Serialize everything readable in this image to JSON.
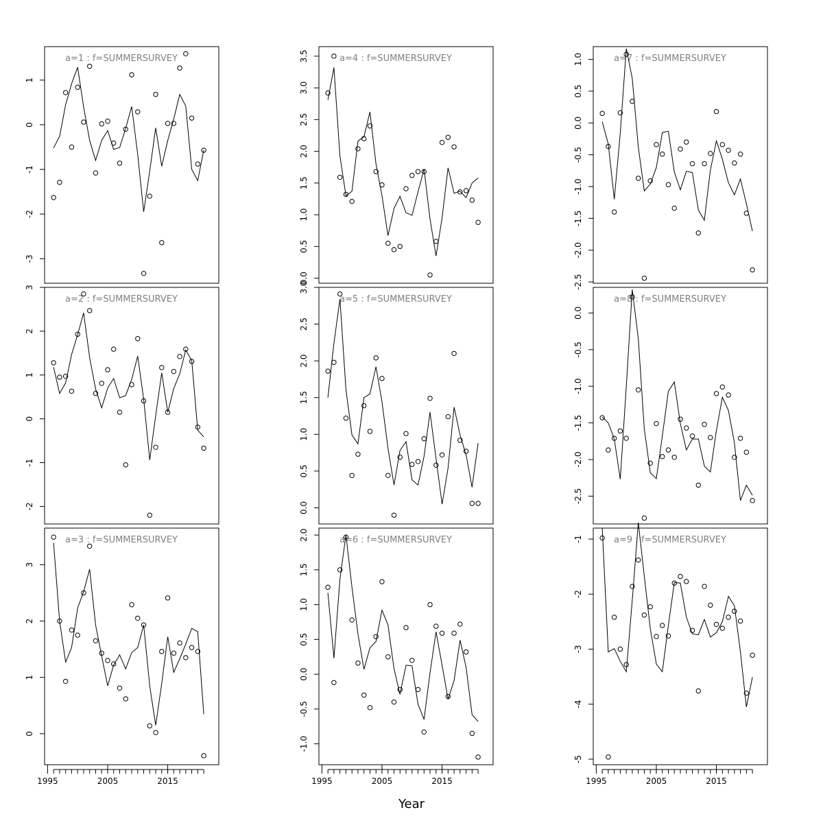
{
  "chart_data": {
    "type": "line",
    "xlabel": "Year",
    "xlim": [
      1994.5,
      2023.5
    ],
    "xticks": [
      1995,
      2005,
      2015
    ],
    "panels": [
      {
        "title": "a=1  :  f=SUMMERSURVEY",
        "ylim": [
          -3.55,
          1.75
        ],
        "yticks": [
          -3,
          -2,
          -1,
          0,
          1
        ],
        "x": [
          1996,
          1997,
          1998,
          1999,
          2000,
          2001,
          2002,
          2003,
          2004,
          2005,
          2006,
          2007,
          2008,
          2009,
          2010,
          2011,
          2012,
          2013,
          2014,
          2015,
          2016,
          2017,
          2018,
          2019,
          2020,
          2021
        ],
        "observed": [
          -1.63,
          -1.29,
          0.72,
          -0.5,
          0.84,
          0.06,
          1.31,
          -1.08,
          0.02,
          0.08,
          -0.41,
          -0.86,
          -0.1,
          1.12,
          0.29,
          -3.33,
          -1.6,
          0.68,
          -2.64,
          0.03,
          0.03,
          1.27,
          1.59,
          0.15,
          -0.88,
          -0.57
        ],
        "fitted": [
          -0.52,
          -0.26,
          0.45,
          0.92,
          1.29,
          0.4,
          -0.35,
          -0.8,
          -0.35,
          -0.13,
          -0.55,
          -0.51,
          -0.08,
          0.41,
          -0.67,
          -1.95,
          -1.04,
          -0.07,
          -0.93,
          -0.35,
          0.13,
          0.68,
          0.42,
          -1.0,
          -1.25,
          -0.57
        ]
      },
      {
        "title": "a=2  :  f=SUMMERSURVEY",
        "ylim": [
          -2.4,
          3.0
        ],
        "yticks": [
          -2,
          -1,
          0,
          1,
          2,
          3
        ],
        "x": [
          1996,
          1997,
          1998,
          1999,
          2000,
          2001,
          2002,
          2003,
          2004,
          2005,
          2006,
          2007,
          2008,
          2009,
          2010,
          2011,
          2012,
          2013,
          2014,
          2015,
          2016,
          2017,
          2018,
          2019,
          2020,
          2021
        ],
        "observed": [
          1.28,
          0.95,
          0.97,
          0.63,
          1.93,
          2.85,
          2.47,
          0.58,
          0.81,
          1.12,
          1.59,
          0.15,
          -1.05,
          0.78,
          1.83,
          0.41,
          -2.2,
          -0.65,
          1.17,
          0.15,
          1.08,
          1.42,
          1.59,
          1.31,
          -0.19,
          -0.67
        ],
        "fitted": [
          1.18,
          0.58,
          0.82,
          1.47,
          1.92,
          2.42,
          1.4,
          0.68,
          0.25,
          0.7,
          0.92,
          0.48,
          0.53,
          0.9,
          1.43,
          0.45,
          -0.94,
          0.07,
          1.05,
          0.15,
          0.69,
          1.03,
          1.57,
          1.33,
          -0.26,
          -0.41
        ]
      },
      {
        "title": "a=3  :  f=SUMMERSURVEY",
        "ylim": [
          -0.55,
          3.65
        ],
        "yticks": [
          0,
          1,
          2,
          3
        ],
        "x": [
          1996,
          1997,
          1998,
          1999,
          2000,
          2001,
          2002,
          2003,
          2004,
          2005,
          2006,
          2007,
          2008,
          2009,
          2010,
          2011,
          2012,
          2013,
          2014,
          2015,
          2016,
          2017,
          2018,
          2019,
          2020,
          2021
        ],
        "observed": [
          3.49,
          2.0,
          0.93,
          1.84,
          1.75,
          2.5,
          3.33,
          1.65,
          1.43,
          1.3,
          1.24,
          0.81,
          0.62,
          2.29,
          2.05,
          1.93,
          0.14,
          0.02,
          1.46,
          2.41,
          1.43,
          1.61,
          1.35,
          1.53,
          1.46,
          -0.39
        ],
        "fitted": [
          3.39,
          2.0,
          1.27,
          1.53,
          2.23,
          2.52,
          2.92,
          1.93,
          1.38,
          0.85,
          1.22,
          1.4,
          1.15,
          1.44,
          1.53,
          1.93,
          0.85,
          0.15,
          0.89,
          1.72,
          1.09,
          1.33,
          1.59,
          1.87,
          1.81,
          0.35
        ]
      },
      {
        "title": "a=4  :  f=SUMMERSURVEY",
        "ylim": [
          -0.08,
          3.65
        ],
        "yticks": [
          0.0,
          0.5,
          1.0,
          1.5,
          2.0,
          2.5,
          3.0,
          3.5
        ],
        "x": [
          1996,
          1997,
          1998,
          1999,
          2000,
          2001,
          2002,
          2003,
          2004,
          2005,
          2006,
          2007,
          2008,
          2009,
          2010,
          2011,
          2012,
          2013,
          2014,
          2015,
          2016,
          2017,
          2018,
          2019,
          2020,
          2021
        ],
        "observed": [
          2.92,
          3.5,
          1.59,
          1.32,
          1.21,
          2.04,
          2.2,
          2.4,
          1.68,
          1.47,
          0.55,
          0.45,
          0.5,
          1.41,
          1.62,
          1.68,
          1.68,
          0.05,
          0.58,
          2.14,
          2.22,
          2.07,
          1.36,
          1.38,
          1.23,
          0.88
        ],
        "fitted": [
          2.81,
          3.32,
          1.92,
          1.3,
          1.37,
          2.16,
          2.23,
          2.62,
          1.8,
          1.3,
          0.67,
          1.1,
          1.29,
          1.03,
          0.99,
          1.36,
          1.72,
          0.93,
          0.35,
          0.95,
          1.74,
          1.34,
          1.37,
          1.27,
          1.5,
          1.58
        ]
      },
      {
        "title": "a=5  :  f=SUMMERSURVEY",
        "ylim": [
          -0.22,
          3.0
        ],
        "yticks": [
          0.0,
          0.5,
          1.0,
          1.5,
          2.0,
          2.5,
          3.0
        ],
        "x": [
          1996,
          1997,
          1998,
          1999,
          2000,
          2001,
          2002,
          2003,
          2004,
          2005,
          2006,
          2007,
          2008,
          2009,
          2010,
          2011,
          2012,
          2013,
          2014,
          2015,
          2016,
          2017,
          2018,
          2019,
          2020,
          2021
        ],
        "observed": [
          1.86,
          1.98,
          2.91,
          1.22,
          0.44,
          0.73,
          1.39,
          1.04,
          2.04,
          1.76,
          0.44,
          -0.1,
          0.69,
          1.01,
          0.59,
          0.63,
          0.94,
          1.49,
          0.58,
          0.72,
          1.24,
          2.1,
          0.92,
          0.77,
          0.06,
          0.06
        ],
        "fitted": [
          1.5,
          2.24,
          2.84,
          1.61,
          0.99,
          0.87,
          1.5,
          1.55,
          1.92,
          1.44,
          0.81,
          0.31,
          0.78,
          0.9,
          0.38,
          0.31,
          0.7,
          1.3,
          0.67,
          0.05,
          0.54,
          1.37,
          0.99,
          0.72,
          0.28,
          0.88
        ]
      },
      {
        "title": "a=6  :  f=SUMMERSURVEY",
        "ylim": [
          -1.3,
          2.1
        ],
        "yticks": [
          -1.0,
          -0.5,
          0.0,
          0.5,
          1.0,
          1.5,
          2.0
        ],
        "x": [
          1996,
          1997,
          1998,
          1999,
          2000,
          2001,
          2002,
          2003,
          2004,
          2005,
          2006,
          2007,
          2008,
          2009,
          2010,
          2011,
          2012,
          2013,
          2014,
          2015,
          2016,
          2017,
          2018,
          2019,
          2020,
          2021
        ],
        "observed": [
          1.25,
          -0.12,
          1.5,
          1.97,
          0.78,
          0.16,
          -0.3,
          -0.48,
          0.54,
          1.33,
          0.25,
          -0.4,
          -0.22,
          0.67,
          0.2,
          -0.22,
          -0.83,
          1.0,
          0.69,
          0.59,
          -0.32,
          0.59,
          0.72,
          0.32,
          -0.85,
          -1.19
        ],
        "fitted": [
          1.17,
          0.23,
          1.37,
          2.0,
          1.25,
          0.58,
          0.07,
          0.38,
          0.47,
          0.92,
          0.71,
          0.08,
          -0.29,
          0.13,
          0.12,
          -0.43,
          -0.65,
          0.02,
          0.61,
          0.13,
          -0.36,
          -0.09,
          0.49,
          0.1,
          -0.58,
          -0.68
        ]
      },
      {
        "title": "a=7  :  f=SUMMERSURVEY",
        "ylim": [
          -2.52,
          1.2
        ],
        "yticks": [
          -2.5,
          -2.0,
          -1.5,
          -1.0,
          -0.5,
          0.0,
          0.5,
          1.0
        ],
        "x": [
          1996,
          1997,
          1998,
          1999,
          2000,
          2001,
          2002,
          2003,
          2004,
          2005,
          2006,
          2007,
          2008,
          2009,
          2010,
          2011,
          2012,
          2013,
          2014,
          2015,
          2016,
          2017,
          2018,
          2019,
          2020,
          2021
        ],
        "observed": [
          0.15,
          -0.37,
          -1.4,
          0.16,
          1.08,
          0.34,
          -0.87,
          -2.44,
          -0.91,
          -0.34,
          -0.49,
          -0.97,
          -1.34,
          -0.41,
          -0.3,
          -0.64,
          -1.73,
          -0.64,
          -0.48,
          0.18,
          -0.34,
          -0.43,
          -0.63,
          -0.49,
          -1.42,
          -2.31
        ],
        "fitted": [
          0.02,
          -0.33,
          -1.2,
          -0.16,
          1.17,
          0.7,
          -0.38,
          -1.07,
          -0.96,
          -0.7,
          -0.15,
          -0.13,
          -0.77,
          -1.05,
          -0.76,
          -0.78,
          -1.37,
          -1.53,
          -0.74,
          -0.28,
          -0.57,
          -0.94,
          -1.13,
          -0.88,
          -1.27,
          -1.7
        ]
      },
      {
        "title": "a=8  :  f=SUMMERSURVEY",
        "ylim": [
          -2.88,
          0.35
        ],
        "yticks": [
          -2.5,
          -2.0,
          -1.5,
          -1.0,
          -0.5,
          0.0
        ],
        "x": [
          1996,
          1997,
          1998,
          1999,
          2000,
          2001,
          2002,
          2003,
          2004,
          2005,
          2006,
          2007,
          2008,
          2009,
          2010,
          2011,
          2012,
          2013,
          2014,
          2015,
          2016,
          2017,
          2018,
          2019,
          2020,
          2021
        ],
        "observed": [
          -1.43,
          -1.87,
          -1.71,
          -1.61,
          -1.71,
          0.22,
          -1.05,
          -2.8,
          -2.05,
          -1.51,
          -1.96,
          -1.87,
          -1.97,
          -1.45,
          -1.57,
          -1.68,
          -2.35,
          -1.52,
          -1.7,
          -1.1,
          -1.01,
          -1.12,
          -1.97,
          -1.71,
          -1.9,
          -2.56
        ],
        "fitted": [
          -1.42,
          -1.5,
          -1.72,
          -2.27,
          -1.0,
          0.32,
          -0.35,
          -1.58,
          -2.18,
          -2.26,
          -1.68,
          -1.07,
          -0.94,
          -1.51,
          -1.87,
          -1.72,
          -1.72,
          -2.09,
          -2.17,
          -1.6,
          -1.15,
          -1.33,
          -1.77,
          -2.56,
          -2.35,
          -2.49
        ]
      },
      {
        "title": "a=9  :  f=SUMMERSURVEY",
        "ylim": [
          -5.1,
          -0.8
        ],
        "yticks": [
          -5,
          -4,
          -3,
          -2,
          -1
        ],
        "x": [
          1996,
          1997,
          1998,
          1999,
          2000,
          2001,
          2002,
          2003,
          2004,
          2005,
          2006,
          2007,
          2008,
          2009,
          2010,
          2011,
          2012,
          2013,
          2014,
          2015,
          2016,
          2017,
          2018,
          2019,
          2020,
          2021
        ],
        "observed": [
          -0.98,
          -4.96,
          -2.42,
          -3.0,
          -3.28,
          -1.86,
          -1.38,
          -2.38,
          -2.23,
          -2.77,
          -2.57,
          -2.76,
          -1.8,
          -1.68,
          -1.77,
          -2.66,
          -3.76,
          -1.86,
          -2.2,
          -2.55,
          -2.62,
          -2.42,
          -2.31,
          -2.49,
          -3.8,
          -3.11
        ],
        "fitted": [
          -0.8,
          -3.05,
          -2.99,
          -3.22,
          -3.41,
          -2.11,
          -0.7,
          -1.67,
          -2.63,
          -3.27,
          -3.41,
          -2.57,
          -1.79,
          -1.8,
          -2.42,
          -2.72,
          -2.74,
          -2.46,
          -2.78,
          -2.7,
          -2.5,
          -2.04,
          -2.21,
          -3.05,
          -4.05,
          -3.51
        ]
      }
    ]
  }
}
